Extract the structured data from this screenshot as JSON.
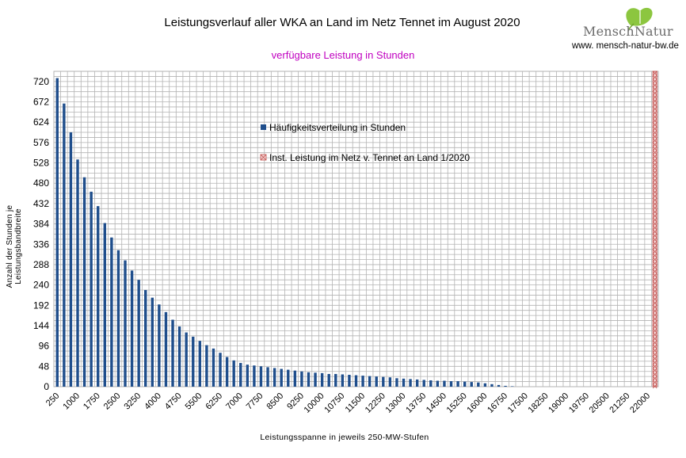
{
  "chart_data": {
    "type": "bar",
    "title": "Leistungsverlauf aller WKA an Land im Netz Tennet im August 2020",
    "subtitle": "verfügbare Leistung in Stunden",
    "xlabel": "Leistungsspanne in jeweils 250-MW-Stufen",
    "ylabel": "Anzahl der Stunden je Leistungsbandbreite",
    "ylim": [
      0,
      744
    ],
    "yticks": [
      0,
      48,
      96,
      144,
      192,
      240,
      288,
      336,
      384,
      432,
      480,
      528,
      576,
      624,
      672,
      720
    ],
    "xtick_labels": [
      "250",
      "1000",
      "1750",
      "2500",
      "3250",
      "4000",
      "4750",
      "5500",
      "6250",
      "7000",
      "7750",
      "8500",
      "9250",
      "10000",
      "10750",
      "11500",
      "12250",
      "13000",
      "13750",
      "14500",
      "15250",
      "16000",
      "16750",
      "17500",
      "18250",
      "19000",
      "19750",
      "20500",
      "21250",
      "22000"
    ],
    "x_start": 250,
    "x_step": 250,
    "grid": true,
    "legend_placement": "upper-middle",
    "series": [
      {
        "name": "Häufigkeitsverteilung in Stunden",
        "color": "#1f4e8c",
        "values": [
          728,
          668,
          600,
          536,
          494,
          460,
          426,
          386,
          352,
          322,
          298,
          274,
          252,
          228,
          210,
          194,
          176,
          158,
          142,
          128,
          118,
          108,
          98,
          90,
          80,
          70,
          62,
          56,
          52,
          50,
          48,
          46,
          44,
          42,
          40,
          38,
          36,
          34,
          33,
          32,
          30,
          30,
          29,
          28,
          27,
          26,
          25,
          24,
          23,
          22,
          20,
          19,
          18,
          17,
          16,
          15,
          14,
          14,
          13,
          13,
          12,
          11,
          10,
          8,
          6,
          4,
          2,
          1,
          0,
          0,
          0,
          0,
          0,
          0,
          0,
          0,
          0,
          0,
          0,
          0,
          0,
          0,
          0,
          0,
          0,
          0,
          0,
          0
        ]
      },
      {
        "name": "Inst. Leistung im Netz v. Tennet an Land 1/2020",
        "color": "#c0504d",
        "x": 22250
      }
    ]
  },
  "logo": {
    "name": "MenschNatur",
    "url": "www. mensch-natur-bw.de"
  }
}
